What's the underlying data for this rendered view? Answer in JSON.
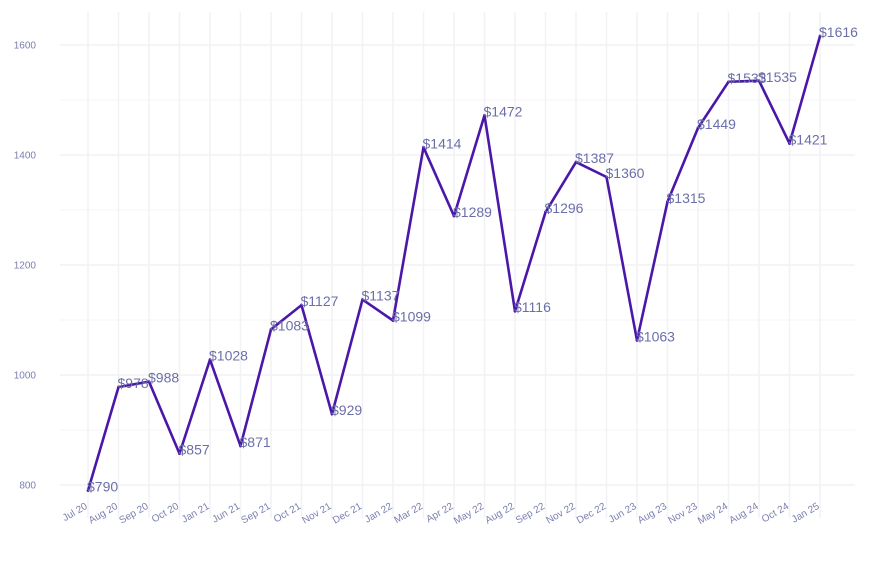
{
  "chart_data": {
    "type": "line",
    "title": "",
    "xlabel": "",
    "ylabel": "",
    "categories": [
      "Jul 20",
      "Aug 20",
      "Sep 20",
      "Oct 20",
      "Jan 21",
      "Jun 21",
      "Sep 21",
      "Oct 21",
      "Nov 21",
      "Dec 21",
      "Jan 22",
      "Mar 22",
      "Apr 22",
      "May 22",
      "Aug 22",
      "Sep 22",
      "Nov 22",
      "Dec 22",
      "Jun 23",
      "Aug 23",
      "Nov 23",
      "May 24",
      "Aug 24",
      "Oct 24",
      "Jan 25"
    ],
    "series": [
      {
        "name": "Price",
        "values": [
          790,
          978,
          988,
          857,
          1028,
          871,
          1083,
          1127,
          929,
          1137,
          1099,
          1414,
          1289,
          1472,
          1116,
          1296,
          1387,
          1360,
          1063,
          1315,
          1449,
          1533,
          1535,
          1421,
          1616
        ],
        "labels": [
          "$790",
          "$978",
          "$988",
          "$857",
          "$1028",
          "$871",
          "$1083",
          "$1127",
          "$929",
          "$1137",
          "$1099",
          "$1414",
          "$1289",
          "$1472",
          "$1116",
          "$1296",
          "$1387",
          "$1360",
          "$1063",
          "$1315",
          "$1449",
          "$1533",
          "$1535",
          "$1421",
          "$1616"
        ]
      }
    ],
    "y_ticks": [
      800,
      1000,
      1200,
      1400,
      1600
    ],
    "y_tick_labels": [
      "800",
      "1000",
      "1200",
      "1400",
      "1600"
    ],
    "ylim": [
      740,
      1660
    ],
    "grid": true,
    "legend": "none"
  },
  "colors": {
    "line": "#4b17a8",
    "label": "#6b6fa8",
    "tick": "#7a7fb0",
    "grid": "#f2f2f6"
  }
}
